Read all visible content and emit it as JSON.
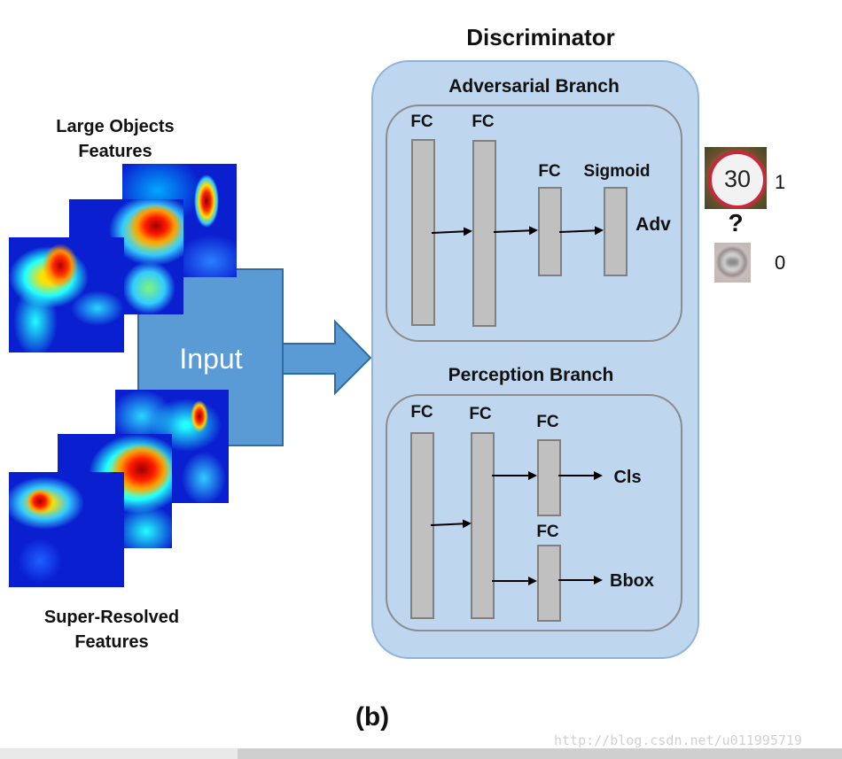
{
  "title": "Discriminator",
  "subfigure_label": "(b)",
  "large_features_label": [
    "Large Objects",
    "Features"
  ],
  "sr_features_label": [
    "Super-Resolved",
    "Features"
  ],
  "input_label": "Input",
  "adversarial_branch": {
    "title": "Adversarial Branch",
    "layers": [
      "FC",
      "FC",
      "FC",
      "Sigmoid"
    ],
    "output": "Adv"
  },
  "perception_branch": {
    "title": "Perception Branch",
    "layers": [
      "FC",
      "FC",
      "FC",
      "FC"
    ],
    "outputs": [
      "Cls",
      "Bbox"
    ]
  },
  "real_sign": {
    "text": "30",
    "score": "1"
  },
  "fake_sign": {
    "score": "0"
  },
  "question_mark": "?",
  "watermark": "http://blog.csdn.net/u011995719",
  "colors": {
    "discriminator_fill": "#bfd7ee",
    "discriminator_border": "#8fb4dc",
    "branch_border": "#8c8c8c",
    "layer_fill": "#c0c0c0",
    "input_fill": "#5b9bd5",
    "input_border": "#2e6da4"
  }
}
